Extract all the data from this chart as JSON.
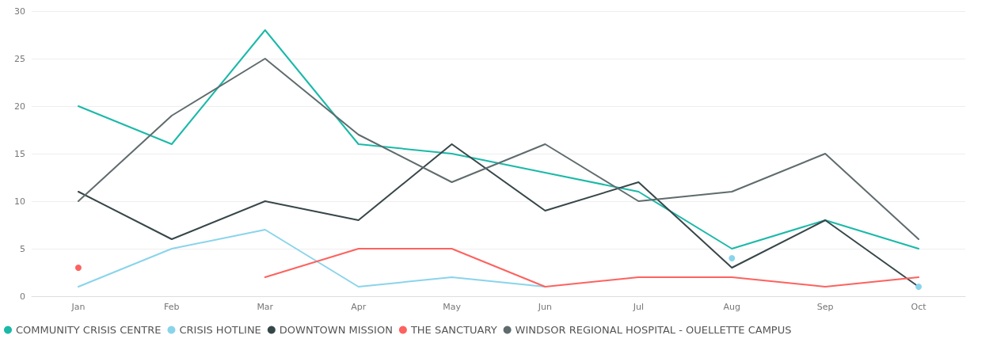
{
  "chart_data": {
    "type": "line",
    "categories": [
      "Jan",
      "Feb",
      "Mar",
      "Apr",
      "May",
      "Jun",
      "Jul",
      "Aug",
      "Sep",
      "Oct"
    ],
    "ylim": [
      0,
      30
    ],
    "yticks": [
      0,
      5,
      10,
      15,
      20,
      25,
      30
    ],
    "grid": "y",
    "legend": "bottom left",
    "marker": "none",
    "series": [
      {
        "name": "COMMUNITY CRISIS CENTRE",
        "color": "#1ab9a8",
        "values": [
          20,
          16,
          28,
          16,
          15,
          13,
          11,
          5,
          8,
          5
        ]
      },
      {
        "name": "CRISIS HOTLINE",
        "color": "#8ad4eb",
        "values": [
          1,
          5,
          7,
          1,
          2,
          1,
          null,
          4,
          null,
          1
        ]
      },
      {
        "name": "DOWNTOWN MISSION",
        "color": "#374649",
        "values": [
          11,
          6,
          10,
          8,
          16,
          9,
          12,
          3,
          8,
          1
        ]
      },
      {
        "name": "THE SANCTUARY",
        "color": "#fd625e",
        "values": [
          3,
          null,
          2,
          5,
          5,
          1,
          2,
          2,
          1,
          2
        ]
      },
      {
        "name": "WINDSOR REGIONAL HOSPITAL - OUELLETTE CAMPUS",
        "color": "#5f6b6d",
        "values": [
          10,
          19,
          25,
          17,
          12,
          16,
          10,
          11,
          15,
          6
        ]
      }
    ]
  }
}
